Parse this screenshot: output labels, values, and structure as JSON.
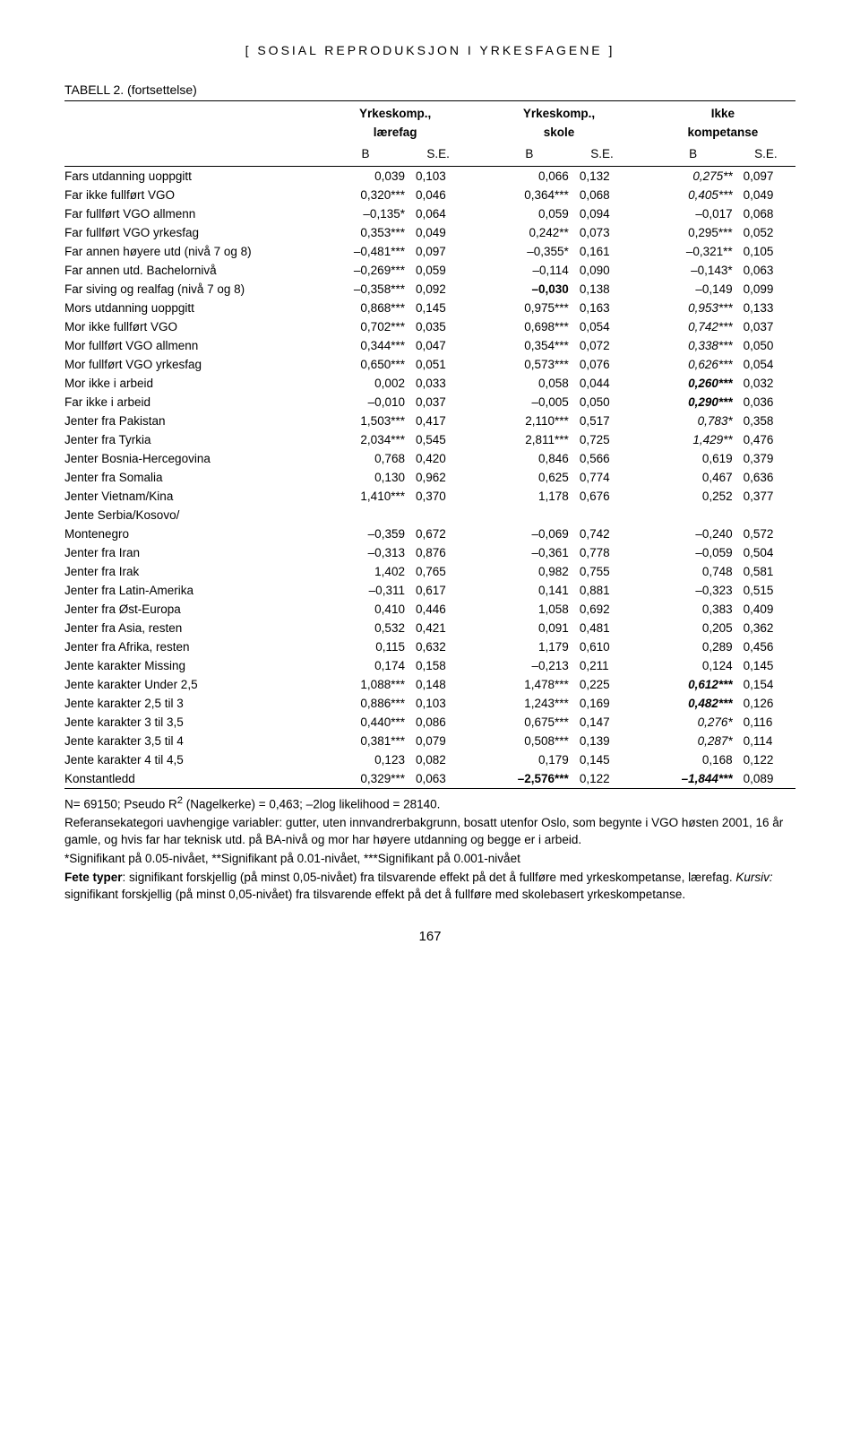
{
  "running_head": "[ SOSIAL REPRODUKSJON I YRKESFAGENE ]",
  "caption": "TABELL 2. (fortsettelse)",
  "header": {
    "group1": "Yrkeskomp., lærefag",
    "group2": "Yrkeskomp., skole",
    "group3": "Ikke kompetanse",
    "B": "B",
    "SE": "S.E."
  },
  "rows": [
    {
      "label": "Fars utdanning uoppgitt",
      "b1": "0,039",
      "se1": "0,103",
      "b2": "0,066",
      "se2": "0,132",
      "b3": "0,275**",
      "se3": "0,097",
      "i3": true
    },
    {
      "label": "Far ikke fullført VGO",
      "b1": "0,320***",
      "se1": "0,046",
      "b2": "0,364***",
      "se2": "0,068",
      "b3": "0,405***",
      "se3": "0,049",
      "i3": true
    },
    {
      "label": "Far fullført VGO allmenn",
      "b1": "–0,135*",
      "se1": "0,064",
      "b2": "0,059",
      "se2": "0,094",
      "b3": "–0,017",
      "se3": "0,068"
    },
    {
      "label": "Far fullført VGO yrkesfag",
      "b1": "0,353***",
      "se1": "0,049",
      "b2": "0,242**",
      "se2": "0,073",
      "b3": "0,295***",
      "se3": "0,052"
    },
    {
      "label": "Far annen høyere utd (nivå 7 og 8)",
      "b1": "–0,481***",
      "se1": "0,097",
      "b2": "–0,355*",
      "se2": "0,161",
      "b3": "–0,321**",
      "se3": "0,105"
    },
    {
      "label": "Far annen utd. Bachelornivå",
      "b1": "–0,269***",
      "se1": "0,059",
      "b2": "–0,114",
      "se2": "0,090",
      "b3": "–0,143*",
      "se3": "0,063"
    },
    {
      "label": "Far siving og realfag (nivå 7 og 8)",
      "b1": "–0,358***",
      "se1": "0,092",
      "b2": "–0,030",
      "bold2": true,
      "se2": "0,138",
      "b3": "–0,149",
      "se3": "0,099"
    },
    {
      "label": "Mors utdanning uoppgitt",
      "b1": "0,868***",
      "se1": "0,145",
      "b2": "0,975***",
      "se2": "0,163",
      "b3": "0,953***",
      "se3": "0,133",
      "i3": true
    },
    {
      "label": "Mor ikke fullført VGO",
      "b1": "0,702***",
      "se1": "0,035",
      "b2": "0,698***",
      "se2": "0,054",
      "b3": "0,742***",
      "se3": "0,037",
      "i3": true
    },
    {
      "label": "Mor fullført VGO allmenn",
      "b1": "0,344***",
      "se1": "0,047",
      "b2": "0,354***",
      "se2": "0,072",
      "b3": "0,338***",
      "se3": "0,050",
      "i3": true
    },
    {
      "label": "Mor fullført VGO yrkesfag",
      "b1": "0,650***",
      "se1": "0,051",
      "b2": "0,573***",
      "se2": "0,076",
      "b3": "0,626***",
      "se3": "0,054",
      "i3": true
    },
    {
      "label": "Mor ikke i arbeid",
      "b1": "0,002",
      "se1": "0,033",
      "b2": "0,058",
      "se2": "0,044",
      "b3": "0,260***",
      "se3": "0,032",
      "i3": true,
      "bold3": true
    },
    {
      "label": "Far ikke i arbeid",
      "b1": "–0,010",
      "se1": "0,037",
      "b2": "–0,005",
      "se2": "0,050",
      "b3": "0,290***",
      "se3": "0,036",
      "i3": true,
      "bold3": true
    },
    {
      "label": "Jenter fra Pakistan",
      "b1": "1,503***",
      "se1": "0,417",
      "b2": "2,110***",
      "se2": "0,517",
      "b3": "0,783*",
      "se3": "0,358",
      "i3": true
    },
    {
      "label": "Jenter fra Tyrkia",
      "b1": "2,034***",
      "se1": "0,545",
      "b2": "2,811***",
      "se2": "0,725",
      "b3": "1,429**",
      "se3": "0,476",
      "i3": true
    },
    {
      "label": "Jenter Bosnia-Hercegovina",
      "b1": "0,768",
      "se1": "0,420",
      "b2": "0,846",
      "se2": "0,566",
      "b3": "0,619",
      "se3": "0,379"
    },
    {
      "label": "Jenter fra Somalia",
      "b1": "0,130",
      "se1": "0,962",
      "b2": "0,625",
      "se2": "0,774",
      "b3": "0,467",
      "se3": "0,636"
    },
    {
      "label": "Jenter Vietnam/Kina",
      "b1": "1,410***",
      "se1": "0,370",
      "b2": "1,178",
      "se2": "0,676",
      "b3": "0,252",
      "se3": "0,377"
    },
    {
      "label": "Jente Serbia/Kosovo/\nMontenegro",
      "b1": "–0,359",
      "se1": "0,672",
      "b2": "–0,069",
      "se2": "0,742",
      "b3": "–0,240",
      "se3": "0,572",
      "twoLine": true
    },
    {
      "label": "Jenter fra Iran",
      "b1": "–0,313",
      "se1": "0,876",
      "b2": "–0,361",
      "se2": "0,778",
      "b3": "–0,059",
      "se3": "0,504"
    },
    {
      "label": "Jenter fra Irak",
      "b1": "1,402",
      "se1": "0,765",
      "b2": "0,982",
      "se2": "0,755",
      "b3": "0,748",
      "se3": "0,581"
    },
    {
      "label": "Jenter fra Latin-Amerika",
      "b1": "–0,311",
      "se1": "0,617",
      "b2": "0,141",
      "se2": "0,881",
      "b3": "–0,323",
      "se3": "0,515"
    },
    {
      "label": "Jenter fra Øst-Europa",
      "b1": "0,410",
      "se1": "0,446",
      "b2": "1,058",
      "se2": "0,692",
      "b3": "0,383",
      "se3": "0,409"
    },
    {
      "label": "Jenter fra Asia, resten",
      "b1": "0,532",
      "se1": "0,421",
      "b2": "0,091",
      "se2": "0,481",
      "b3": "0,205",
      "se3": "0,362"
    },
    {
      "label": "Jenter fra Afrika, resten",
      "b1": "0,115",
      "se1": "0,632",
      "b2": "1,179",
      "se2": "0,610",
      "b3": "0,289",
      "se3": "0,456"
    },
    {
      "label": "Jente karakter Missing",
      "b1": "0,174",
      "se1": "0,158",
      "b2": "–0,213",
      "se2": "0,211",
      "b3": "0,124",
      "se3": "0,145"
    },
    {
      "label": "Jente karakter Under 2,5",
      "b1": "1,088***",
      "se1": "0,148",
      "b2": "1,478***",
      "se2": "0,225",
      "b3": "0,612***",
      "se3": "0,154",
      "bold3": true,
      "i3": true
    },
    {
      "label": "Jente karakter 2,5 til 3",
      "b1": "0,886***",
      "se1": "0,103",
      "b2": "1,243***",
      "se2": "0,169",
      "b3": "0,482***",
      "se3": "0,126",
      "bold3": true,
      "i3": true
    },
    {
      "label": "Jente karakter 3 til 3,5",
      "b1": "0,440***",
      "se1": "0,086",
      "b2": "0,675***",
      "se2": "0,147",
      "b3": "0,276*",
      "se3": "0,116",
      "i3": true
    },
    {
      "label": "Jente karakter 3,5 til 4",
      "b1": "0,381***",
      "se1": "0,079",
      "b2": "0,508***",
      "se2": "0,139",
      "b3": "0,287*",
      "se3": "0,114",
      "i3": true
    },
    {
      "label": "Jente karakter 4 til 4,5",
      "b1": "0,123",
      "se1": "0,082",
      "b2": "0,179",
      "se2": "0,145",
      "b3": "0,168",
      "se3": "0,122"
    },
    {
      "label": "Konstantledd",
      "b1": "0,329***",
      "se1": "0,063",
      "b2": "–2,576***",
      "bold2": true,
      "se2": "0,122",
      "b3": "–1,844***",
      "se3": "0,089",
      "bold3": true,
      "i3": true
    }
  ],
  "notes": {
    "n": "N= 69150; Pseudo R",
    "n_sup": "2",
    "n_rest": " (Nagelkerke) = 0,463; –2log likelihood = 28140.",
    "ref": "Referansekategori uavhengige variabler: gutter, uten innvandrerbakgrunn, bosatt utenfor Oslo, som begynte i VGO høsten 2001, 16 år gamle, og hvis far har teknisk utd. på BA-nivå og mor har høyere utdanning og begge er i arbeid.",
    "sig": "*Signifikant på 0.05-nivået, **Signifikant på 0.01-nivået, ***Signifikant på 0.001-nivået",
    "bold_lbl": "Fete typer",
    "bold_txt": ": signifikant forskjellig (på minst 0,05-nivået) fra tilsvarende effekt på det å fullføre med yrkeskompetanse, lærefag. ",
    "kursiv_lbl": "Kursiv:",
    "kursiv_txt": " signifikant forskjellig (på minst 0,05-nivået) fra tilsvarende effekt på det å fullføre med skolebasert yrkeskompetanse."
  },
  "page_number": "167"
}
